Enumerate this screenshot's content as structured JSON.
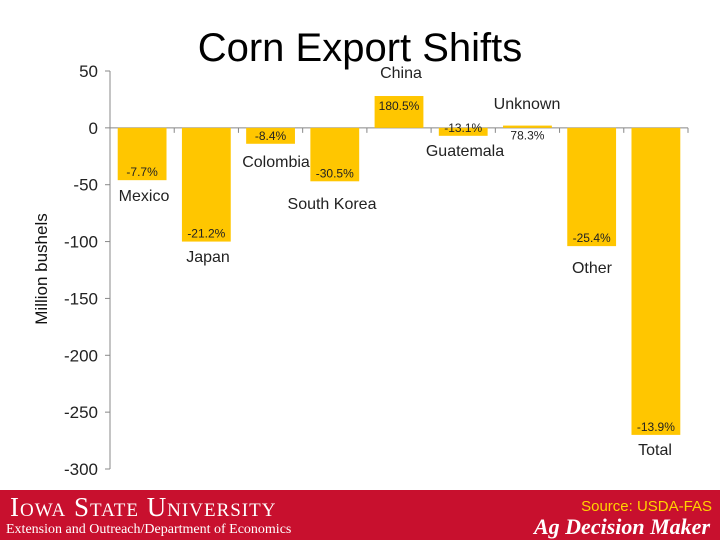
{
  "chart_data": {
    "type": "bar",
    "title": "Corn Export Shifts",
    "ylabel": "Million bushels",
    "xlabel": "",
    "ylim": [
      -300,
      50
    ],
    "yticks": [
      50,
      0,
      -50,
      -100,
      -150,
      -200,
      -250,
      -300
    ],
    "grid": false,
    "bar_color": "#ffc600",
    "categories": [
      "Mexico",
      "Japan",
      "Colombia",
      "South Korea",
      "China",
      "Guatemala",
      "Unknown",
      "Other",
      "Total"
    ],
    "values": [
      -46,
      -100,
      -14,
      -47,
      28,
      -7,
      2,
      -104,
      -270
    ],
    "pct_labels": [
      "-7.7%",
      "-21.2%",
      "-8.4%",
      "-30.5%",
      "180.5%",
      "-13.1%",
      "78.3%",
      "-25.4%",
      "-13.9%"
    ]
  },
  "footer": {
    "university": "Iowa State University",
    "department": "Extension and Outreach/Department of Economics",
    "source": "Source: USDA-FAS",
    "program": "Ag Decision Maker"
  }
}
